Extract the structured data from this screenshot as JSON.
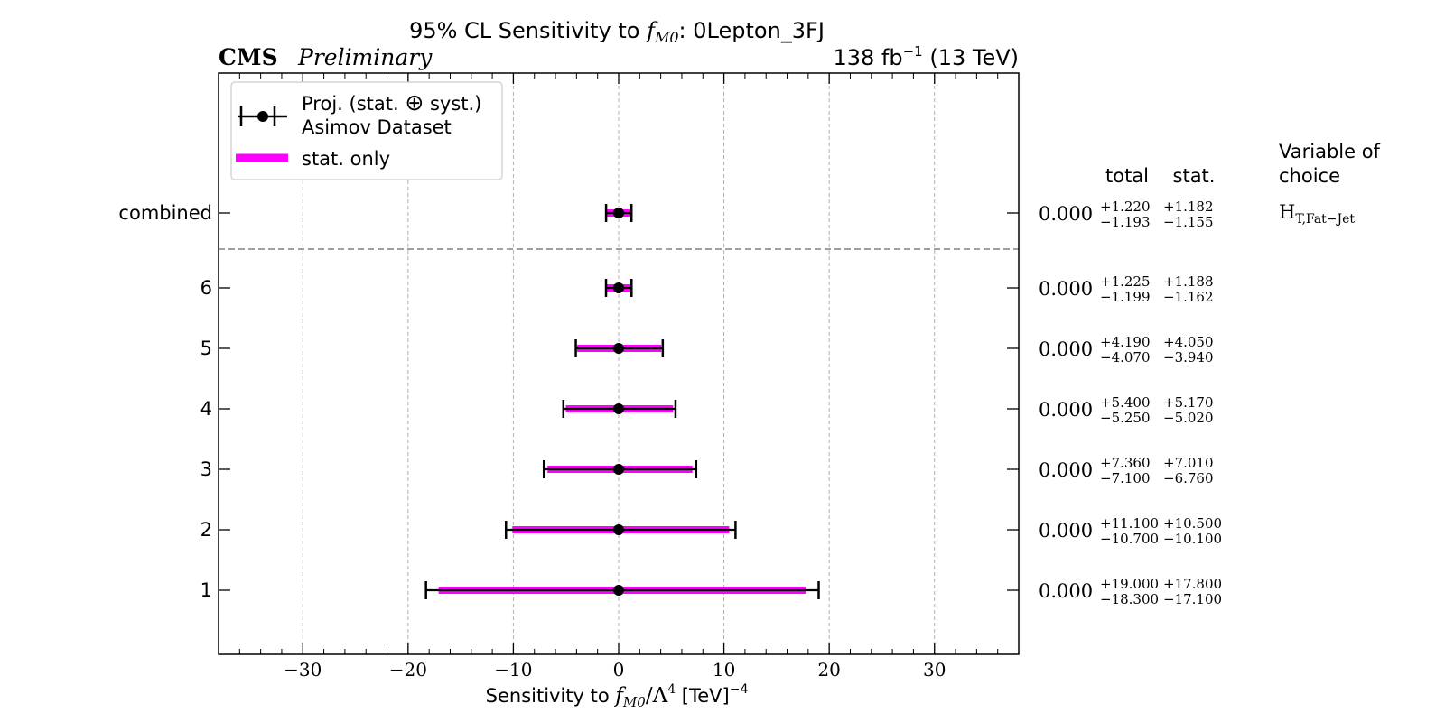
{
  "chart_data": {
    "type": "error-bar",
    "title": {
      "prefix": "95% CL Sensitivity to ",
      "var_main": "f",
      "var_sub": "M0",
      "suffix": ": 0Lepton_3FJ"
    },
    "experiment_label": "CMS",
    "status_label": "Preliminary",
    "lumi_label": {
      "value": "138 fb",
      "sup": "−1",
      "energy": " (13 TeV)"
    },
    "xlabel": {
      "prefix": "Sensitivity to ",
      "var_main": "f",
      "var_sub": "M0",
      "mid": "/Λ",
      "mid_sup": "4",
      "unit": " [TeV]",
      "unit_sup": "−4"
    },
    "xlim": [
      -38,
      38
    ],
    "xticks": [
      -30,
      -20,
      -10,
      0,
      10,
      20,
      30
    ],
    "xtick_labels": [
      "−30",
      "−20",
      "−10",
      "0",
      "10",
      "20",
      "30"
    ],
    "grid": "vertical dashed",
    "legend": {
      "placement": "top-left",
      "entries": [
        {
          "label_line1_a": "Proj. (stat. ",
          "label_line1_symbol": "⊕",
          "label_line1_b": " syst.)",
          "label_line2": "Asimov Dataset",
          "color": "#000000",
          "style": "errorbar"
        },
        {
          "label": "stat. only",
          "color": "#ff00ff",
          "style": "band"
        }
      ]
    },
    "table_headers": {
      "total": "total",
      "stat": "stat.",
      "variable_line1": "Variable of",
      "variable_line2": "choice"
    },
    "variable": {
      "main": "H",
      "sub": "T,Fat−Jet"
    },
    "rows": [
      {
        "label": "combined",
        "central": 0.0,
        "central_text": "0.000",
        "total_up": 1.22,
        "total_down": 1.193,
        "stat_up": 1.182,
        "stat_down": 1.155,
        "total_up_text": "+1.220",
        "total_down_text": "−1.193",
        "stat_up_text": "+1.182",
        "stat_down_text": "−1.155"
      },
      {
        "label": "6",
        "central": 0.0,
        "central_text": "0.000",
        "total_up": 1.225,
        "total_down": 1.199,
        "stat_up": 1.188,
        "stat_down": 1.162,
        "total_up_text": "+1.225",
        "total_down_text": "−1.199",
        "stat_up_text": "+1.188",
        "stat_down_text": "−1.162"
      },
      {
        "label": "5",
        "central": 0.0,
        "central_text": "0.000",
        "total_up": 4.19,
        "total_down": 4.07,
        "stat_up": 4.05,
        "stat_down": 3.94,
        "total_up_text": "+4.190",
        "total_down_text": "−4.070",
        "stat_up_text": "+4.050",
        "stat_down_text": "−3.940"
      },
      {
        "label": "4",
        "central": 0.0,
        "central_text": "0.000",
        "total_up": 5.4,
        "total_down": 5.25,
        "stat_up": 5.17,
        "stat_down": 5.02,
        "total_up_text": "+5.400",
        "total_down_text": "−5.250",
        "stat_up_text": "+5.170",
        "stat_down_text": "−5.020"
      },
      {
        "label": "3",
        "central": 0.0,
        "central_text": "0.000",
        "total_up": 7.36,
        "total_down": 7.1,
        "stat_up": 7.01,
        "stat_down": 6.76,
        "total_up_text": "+7.360",
        "total_down_text": "−7.100",
        "stat_up_text": "+7.010",
        "stat_down_text": "−6.760"
      },
      {
        "label": "2",
        "central": 0.0,
        "central_text": "0.000",
        "total_up": 11.1,
        "total_down": 10.7,
        "stat_up": 10.5,
        "stat_down": 10.1,
        "total_up_text": "+11.100",
        "total_down_text": "−10.700",
        "stat_up_text": "+10.500",
        "stat_down_text": "−10.100"
      },
      {
        "label": "1",
        "central": 0.0,
        "central_text": "0.000",
        "total_up": 19.0,
        "total_down": 18.3,
        "stat_up": 17.8,
        "stat_down": 17.1,
        "total_up_text": "+19.000",
        "total_down_text": "−18.300",
        "stat_up_text": "+17.800",
        "stat_down_text": "−17.100"
      }
    ],
    "colors": {
      "total": "#000000",
      "stat": "#ff00ff",
      "grid": "#b0b0b0",
      "separator": "#808080"
    }
  }
}
